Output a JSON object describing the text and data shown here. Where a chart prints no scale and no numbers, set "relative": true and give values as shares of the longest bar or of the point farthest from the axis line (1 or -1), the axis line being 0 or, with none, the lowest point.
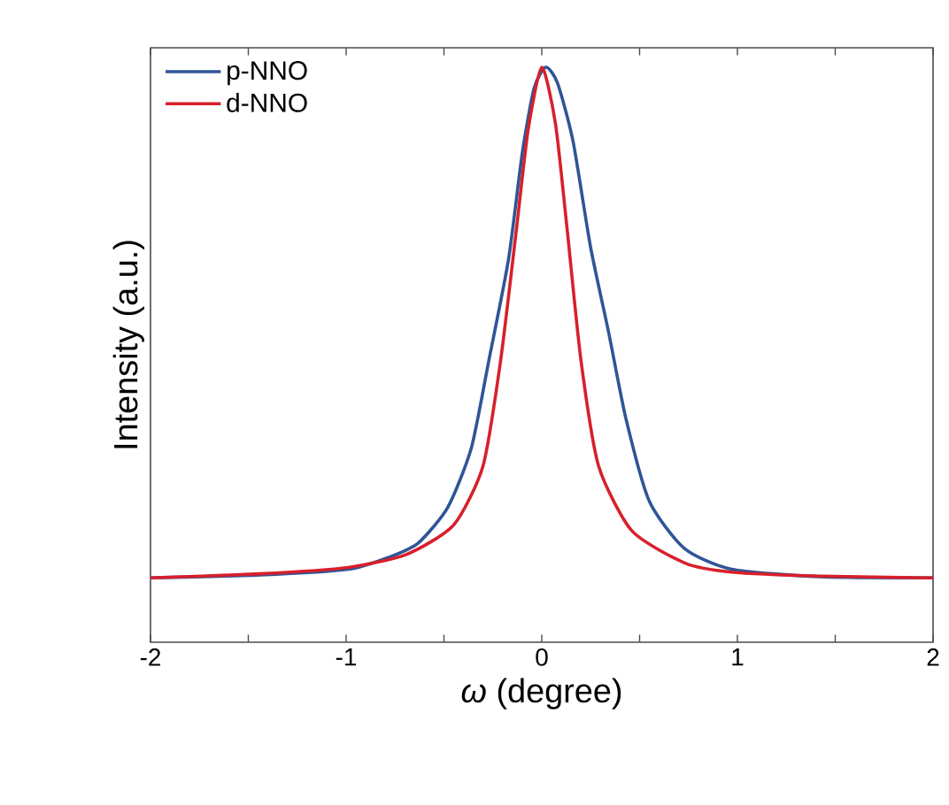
{
  "chart_data": {
    "type": "line",
    "xlabel": "*ω* (degree)",
    "ylabel": "Intensity (a.u.)",
    "relative": true,
    "xlim": [
      -2,
      2
    ],
    "xticks": [
      -2,
      {
        "value": -1.5,
        "label": null
      },
      -1,
      {
        "value": -0.5,
        "label": null
      },
      0,
      {
        "value": 0.5,
        "label": null
      },
      1,
      {
        "value": 1.5,
        "label": null
      },
      2
    ],
    "legend": "top left",
    "grid": false,
    "marker": "none",
    "line_style": "solid",
    "series": [
      {
        "name": "p-NNO",
        "color": "#2f5597",
        "x": [
          -2,
          -1.44,
          -0.99,
          -0.78,
          -0.63,
          -0.48,
          -0.36,
          -0.27,
          -0.17,
          -0.1,
          -0.04,
          0.02,
          0.08,
          0.16,
          0.25,
          0.34,
          0.43,
          0.55,
          0.73,
          0.97,
          1.42,
          2
        ],
        "values": [
          0.112,
          0.117,
          0.127,
          0.148,
          0.173,
          0.235,
          0.338,
          0.491,
          0.666,
          0.85,
          0.963,
          1.0,
          0.973,
          0.871,
          0.686,
          0.542,
          0.389,
          0.245,
          0.163,
          0.127,
          0.114,
          0.112
        ]
      },
      {
        "name": "d-NNO",
        "color": "#d7202b",
        "x": [
          -2,
          -1.44,
          -0.99,
          -0.69,
          -0.45,
          -0.3,
          -0.21,
          -0.13,
          -0.07,
          0,
          0.07,
          0.13,
          0.2,
          0.29,
          0.46,
          0.73,
          0.97,
          1.42,
          2
        ],
        "values": [
          0.112,
          0.119,
          0.13,
          0.153,
          0.204,
          0.307,
          0.491,
          0.717,
          0.891,
          1.0,
          0.902,
          0.717,
          0.491,
          0.307,
          0.194,
          0.138,
          0.122,
          0.115,
          0.112
        ]
      }
    ]
  }
}
